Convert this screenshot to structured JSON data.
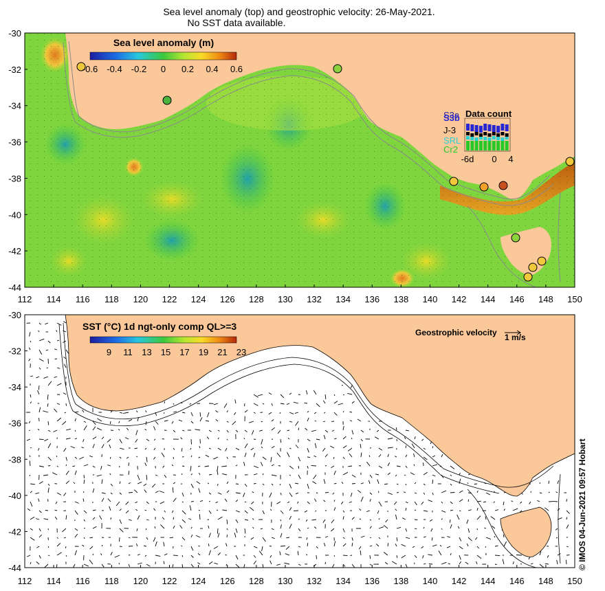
{
  "titles": {
    "line1": "Sea level anomaly (top) and geostrophic velocity: 26-May-2021.",
    "line2": "No SST data available."
  },
  "top_map": {
    "colorbar_title": "Sea level anomaly (m)",
    "colorbar_ticks": [
      "-0.6",
      "-0.4",
      "-0.2",
      "0",
      "0.2",
      "0.4",
      "0.6"
    ],
    "colors": [
      "#1e1ea0",
      "#1e6ee6",
      "#28c8dc",
      "#3cc83c",
      "#b4e632",
      "#fadc28",
      "#f08c14",
      "#b4280a"
    ],
    "x_ticks": [
      "112",
      "114",
      "116",
      "118",
      "120",
      "122",
      "124",
      "126",
      "128",
      "130",
      "132",
      "134",
      "136",
      "138",
      "140",
      "142",
      "144",
      "146",
      "148",
      "150"
    ],
    "y_ticks": [
      "-30",
      "-32",
      "-34",
      "-36",
      "-38",
      "-40",
      "-42",
      "-44"
    ]
  },
  "data_count": {
    "title": "Data count",
    "sats": [
      "S3a",
      "S3b",
      "J-3",
      "SRL",
      "Cr2"
    ],
    "sat_colors": [
      "#1e1ea0",
      "#2828d2",
      "#000000",
      "#28d2d2",
      "#28c828"
    ],
    "x_ticks": [
      "-6d",
      "0",
      "4"
    ]
  },
  "bottom_map": {
    "colorbar_title": "SST (°C) 1d ngt-only comp QL>=3",
    "colorbar_ticks": [
      "9",
      "11",
      "13",
      "15",
      "17",
      "19",
      "21",
      "23"
    ],
    "velocity_label": "Geostrophic velocity",
    "velocity_scale": "1 m/s",
    "credit": "© IMOS 04-Jun-2021 09:57 Hobart",
    "land_color": "#fbc89a"
  }
}
